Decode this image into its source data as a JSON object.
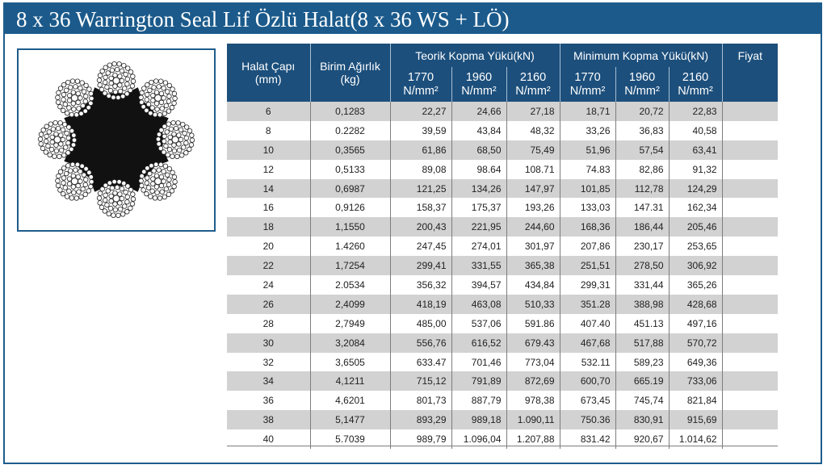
{
  "title": "8 x 36 Warrington Seal Lif Özlü Halat(8 x 36 WS + LÖ)",
  "table": {
    "headers": {
      "diameter": [
        "Halat Çapı",
        "(mm)"
      ],
      "weight": [
        "Birim Ağırlık",
        "(kg)"
      ],
      "theoretical": "Teorik Kopma Yükü(kN)",
      "minimum": "Minimum Kopma Yükü(kN)",
      "price": "Fiyat",
      "grades": [
        {
          "value": "1770",
          "unit": "N/mm²"
        },
        {
          "value": "1960",
          "unit": "N/mm²"
        },
        {
          "value": "2160",
          "unit": "N/mm²"
        },
        {
          "value": "1770",
          "unit": "N/mm²"
        },
        {
          "value": "1960",
          "unit": "N/mm²"
        },
        {
          "value": "2160",
          "unit": "N/mm²"
        }
      ]
    },
    "rows": [
      [
        "6",
        "0,1283",
        "22,27",
        "24,66",
        "27,18",
        "18,71",
        "20,72",
        "22,83",
        ""
      ],
      [
        "8",
        "0.2282",
        "39,59",
        "43,84",
        "48,32",
        "33,26",
        "36,83",
        "40,58",
        ""
      ],
      [
        "10",
        "0,3565",
        "61,86",
        "68,50",
        "75,49",
        "51,96",
        "57,54",
        "63,41",
        ""
      ],
      [
        "12",
        "0,5133",
        "89,08",
        "98.64",
        "108.71",
        "74.83",
        "82,86",
        "91,32",
        ""
      ],
      [
        "14",
        "0,6987",
        "121,25",
        "134,26",
        "147,97",
        "101,85",
        "112,78",
        "124,29",
        ""
      ],
      [
        "16",
        "0,9126",
        "158,37",
        "175,37",
        "193,26",
        "133,03",
        "147.31",
        "162,34",
        ""
      ],
      [
        "18",
        "1,1550",
        "200,43",
        "221,95",
        "244,60",
        "168,36",
        "186,44",
        "205,46",
        ""
      ],
      [
        "20",
        "1.4260",
        "247,45",
        "274,01",
        "301,97",
        "207,86",
        "230,17",
        "253,65",
        ""
      ],
      [
        "22",
        "1,7254",
        "299,41",
        "331,55",
        "365,38",
        "251,51",
        "278,50",
        "306,92",
        ""
      ],
      [
        "24",
        "2.0534",
        "356,32",
        "394,57",
        "434,84",
        "299,31",
        "331,44",
        "365,26",
        ""
      ],
      [
        "26",
        "2,4099",
        "418,19",
        "463,08",
        "510,33",
        "351.28",
        "388,98",
        "428,68",
        ""
      ],
      [
        "28",
        "2,7949",
        "485,00",
        "537,06",
        "591.86",
        "407.40",
        "451.13",
        "497,16",
        ""
      ],
      [
        "30",
        "3,2084",
        "556,76",
        "616,52",
        "679.43",
        "467,68",
        "517,88",
        "570,72",
        ""
      ],
      [
        "32",
        "3,6505",
        "633.47",
        "701,46",
        "773,04",
        "532.11",
        "589,23",
        "649,36",
        ""
      ],
      [
        "34",
        "4,1211",
        "715,12",
        "791,89",
        "872,69",
        "600,70",
        "665.19",
        "733,06",
        ""
      ],
      [
        "36",
        "4,6201",
        "801,73",
        "887,79",
        "978,38",
        "673,45",
        "745,74",
        "821,84",
        ""
      ],
      [
        "38",
        "5,1477",
        "893,29",
        "989,18",
        "1.090,11",
        "750.36",
        "830,91",
        "915,69",
        ""
      ],
      [
        "40",
        "5.7039",
        "989,79",
        "1.096,04",
        "1.207,88",
        "831.42",
        "920,67",
        "1.014,62",
        ""
      ]
    ]
  },
  "colors": {
    "header_blue": "#1b5a8b",
    "row_stripe": "#d2d2d2"
  },
  "image": {
    "subject": "wire-rope-cross-section-icon"
  }
}
